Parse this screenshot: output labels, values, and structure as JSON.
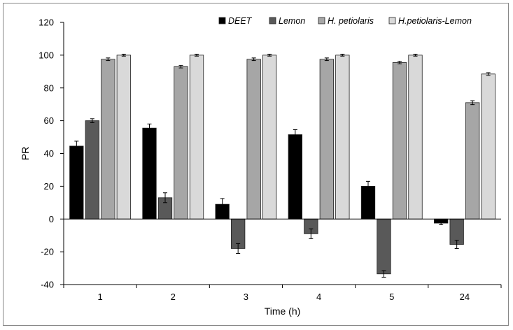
{
  "chart_data": {
    "type": "bar",
    "title": "",
    "xlabel": "Time (h)",
    "ylabel": "PR",
    "ylim": [
      -40,
      120
    ],
    "yticks": [
      -40,
      -20,
      0,
      20,
      40,
      60,
      80,
      100,
      120
    ],
    "categories": [
      "1",
      "2",
      "3",
      "4",
      "5",
      "24"
    ],
    "grid": false,
    "legend_position": "top",
    "series": [
      {
        "name": "DEET",
        "color": "#000000",
        "values": [
          44.5,
          55.5,
          9.0,
          51.5,
          20.0,
          -2.5
        ],
        "errors": [
          3.0,
          2.5,
          3.5,
          3.0,
          3.0,
          1.0
        ]
      },
      {
        "name": "Lemon",
        "color": "#595959",
        "values": [
          60.0,
          13.0,
          -18.0,
          -9.0,
          -33.5,
          -15.5
        ],
        "errors": [
          1.2,
          3.0,
          3.0,
          3.0,
          2.0,
          2.5
        ]
      },
      {
        "name": "H. petiolaris",
        "color": "#a6a6a6",
        "values": [
          97.5,
          93.0,
          97.5,
          97.5,
          95.5,
          71.0
        ],
        "errors": [
          0.8,
          0.8,
          0.8,
          0.8,
          0.8,
          1.2
        ]
      },
      {
        "name": "H.petiolaris-Lemon",
        "color": "#d9d9d9",
        "values": [
          100.0,
          100.0,
          100.0,
          100.0,
          100.0,
          88.5
        ],
        "errors": [
          0.6,
          0.6,
          0.6,
          0.6,
          0.6,
          0.8
        ]
      }
    ]
  }
}
